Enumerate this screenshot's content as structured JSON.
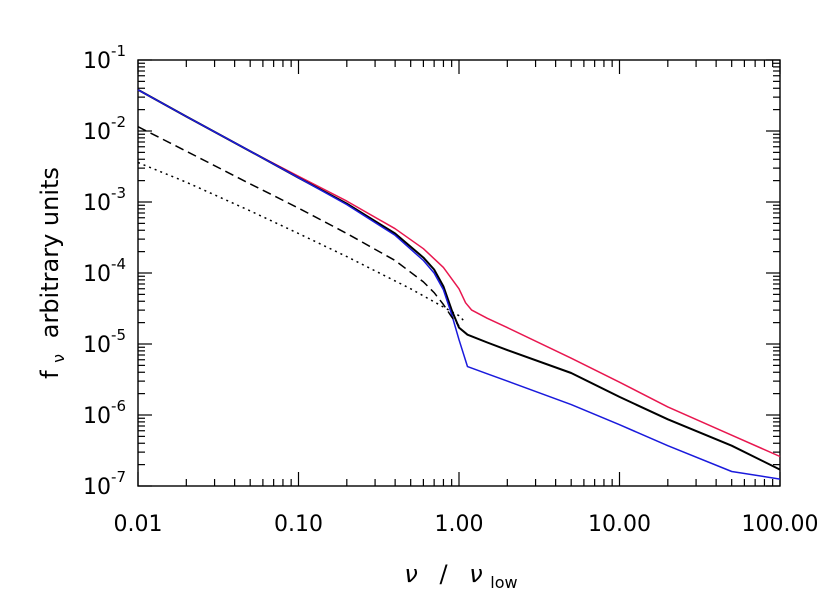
{
  "chart_data": {
    "type": "line",
    "title": "",
    "xlabel": {
      "symbol": "ν",
      "separator": "/",
      "sub_symbol": "ν",
      "subscript": "low"
    },
    "ylabel": {
      "symbol": "f",
      "subscript": "ν",
      "text": "arbitrary units"
    },
    "xscale": "log",
    "yscale": "log",
    "xlim": [
      0.01,
      100.0
    ],
    "ylim": [
      1e-07,
      0.1
    ],
    "grid": false,
    "legend": "none",
    "x_ticks": [
      {
        "value": 0.01,
        "label": "0.01"
      },
      {
        "value": 0.1,
        "label": "0.10"
      },
      {
        "value": 1.0,
        "label": "1.00"
      },
      {
        "value": 10.0,
        "label": "10.00"
      },
      {
        "value": 100.0,
        "label": "100.00"
      }
    ],
    "y_ticks": [
      {
        "value": 0.1,
        "base": "10",
        "exp": "-1"
      },
      {
        "value": 0.01,
        "base": "10",
        "exp": "-2"
      },
      {
        "value": 0.001,
        "base": "10",
        "exp": "-3"
      },
      {
        "value": 0.0001,
        "base": "10",
        "exp": "-4"
      },
      {
        "value": 1e-05,
        "base": "10",
        "exp": "-5"
      },
      {
        "value": 1e-06,
        "base": "10",
        "exp": "-6"
      },
      {
        "value": 1e-07,
        "base": "10",
        "exp": "-7"
      }
    ],
    "series": [
      {
        "color": "#e8174f",
        "style": "solid",
        "x": [
          0.01,
          0.02,
          0.05,
          0.1,
          0.2,
          0.4,
          0.6,
          0.8,
          1.0,
          1.1,
          1.2,
          1.5,
          2,
          5,
          10,
          20,
          50,
          100
        ],
        "y": [
          0.038,
          0.016,
          0.0052,
          0.0023,
          0.00103,
          0.00042,
          0.00022,
          0.00012,
          6e-05,
          3.8e-05,
          3e-05,
          2.3e-05,
          1.7e-05,
          6.3e-06,
          2.9e-06,
          1.3e-06,
          5.2e-07,
          2.6e-07
        ]
      },
      {
        "color": "#000000",
        "style": "solid",
        "x": [
          0.01,
          0.02,
          0.05,
          0.1,
          0.2,
          0.4,
          0.6,
          0.7,
          0.8,
          0.9,
          1.0,
          1.13,
          1.5,
          2,
          5,
          10,
          20,
          50,
          100
        ],
        "y": [
          0.038,
          0.016,
          0.0052,
          0.0022,
          0.00095,
          0.00036,
          0.000165,
          0.000112,
          6.5e-05,
          3e-05,
          1.7e-05,
          1.35e-05,
          1.05e-05,
          8.2e-06,
          3.9e-06,
          1.8e-06,
          8.7e-07,
          3.7e-07,
          1.7e-07
        ]
      },
      {
        "color": "#1a1adc",
        "style": "solid",
        "x": [
          0.01,
          0.02,
          0.05,
          0.1,
          0.2,
          0.4,
          0.6,
          0.7,
          0.8,
          0.9,
          1.0,
          1.13,
          1.5,
          2,
          5,
          10,
          20,
          50,
          100
        ],
        "y": [
          0.038,
          0.016,
          0.0052,
          0.0022,
          0.00092,
          0.00034,
          0.00015,
          0.0001,
          5.8e-05,
          2.6e-05,
          1.15e-05,
          4.8e-06,
          3.8e-06,
          3e-06,
          1.4e-06,
          7.3e-07,
          3.7e-07,
          1.6e-07,
          1.25e-07
        ]
      },
      {
        "color": "#000000",
        "style": "dashed",
        "x": [
          0.01,
          0.02,
          0.05,
          0.1,
          0.2,
          0.4,
          0.6,
          0.7,
          0.8,
          0.9,
          1.0
        ],
        "y": [
          0.0115,
          0.0052,
          0.0018,
          0.00082,
          0.00036,
          0.00015,
          7.5e-05,
          5.3e-05,
          3.6e-05,
          2.4e-05,
          1.8e-05
        ]
      },
      {
        "color": "#000000",
        "style": "dotted",
        "x": [
          0.01,
          0.02,
          0.05,
          0.1,
          0.2,
          0.5,
          1.0,
          1.1
        ],
        "y": [
          0.0036,
          0.0019,
          0.00075,
          0.00036,
          0.00017,
          6e-05,
          2.5e-05,
          2e-05
        ]
      }
    ]
  }
}
